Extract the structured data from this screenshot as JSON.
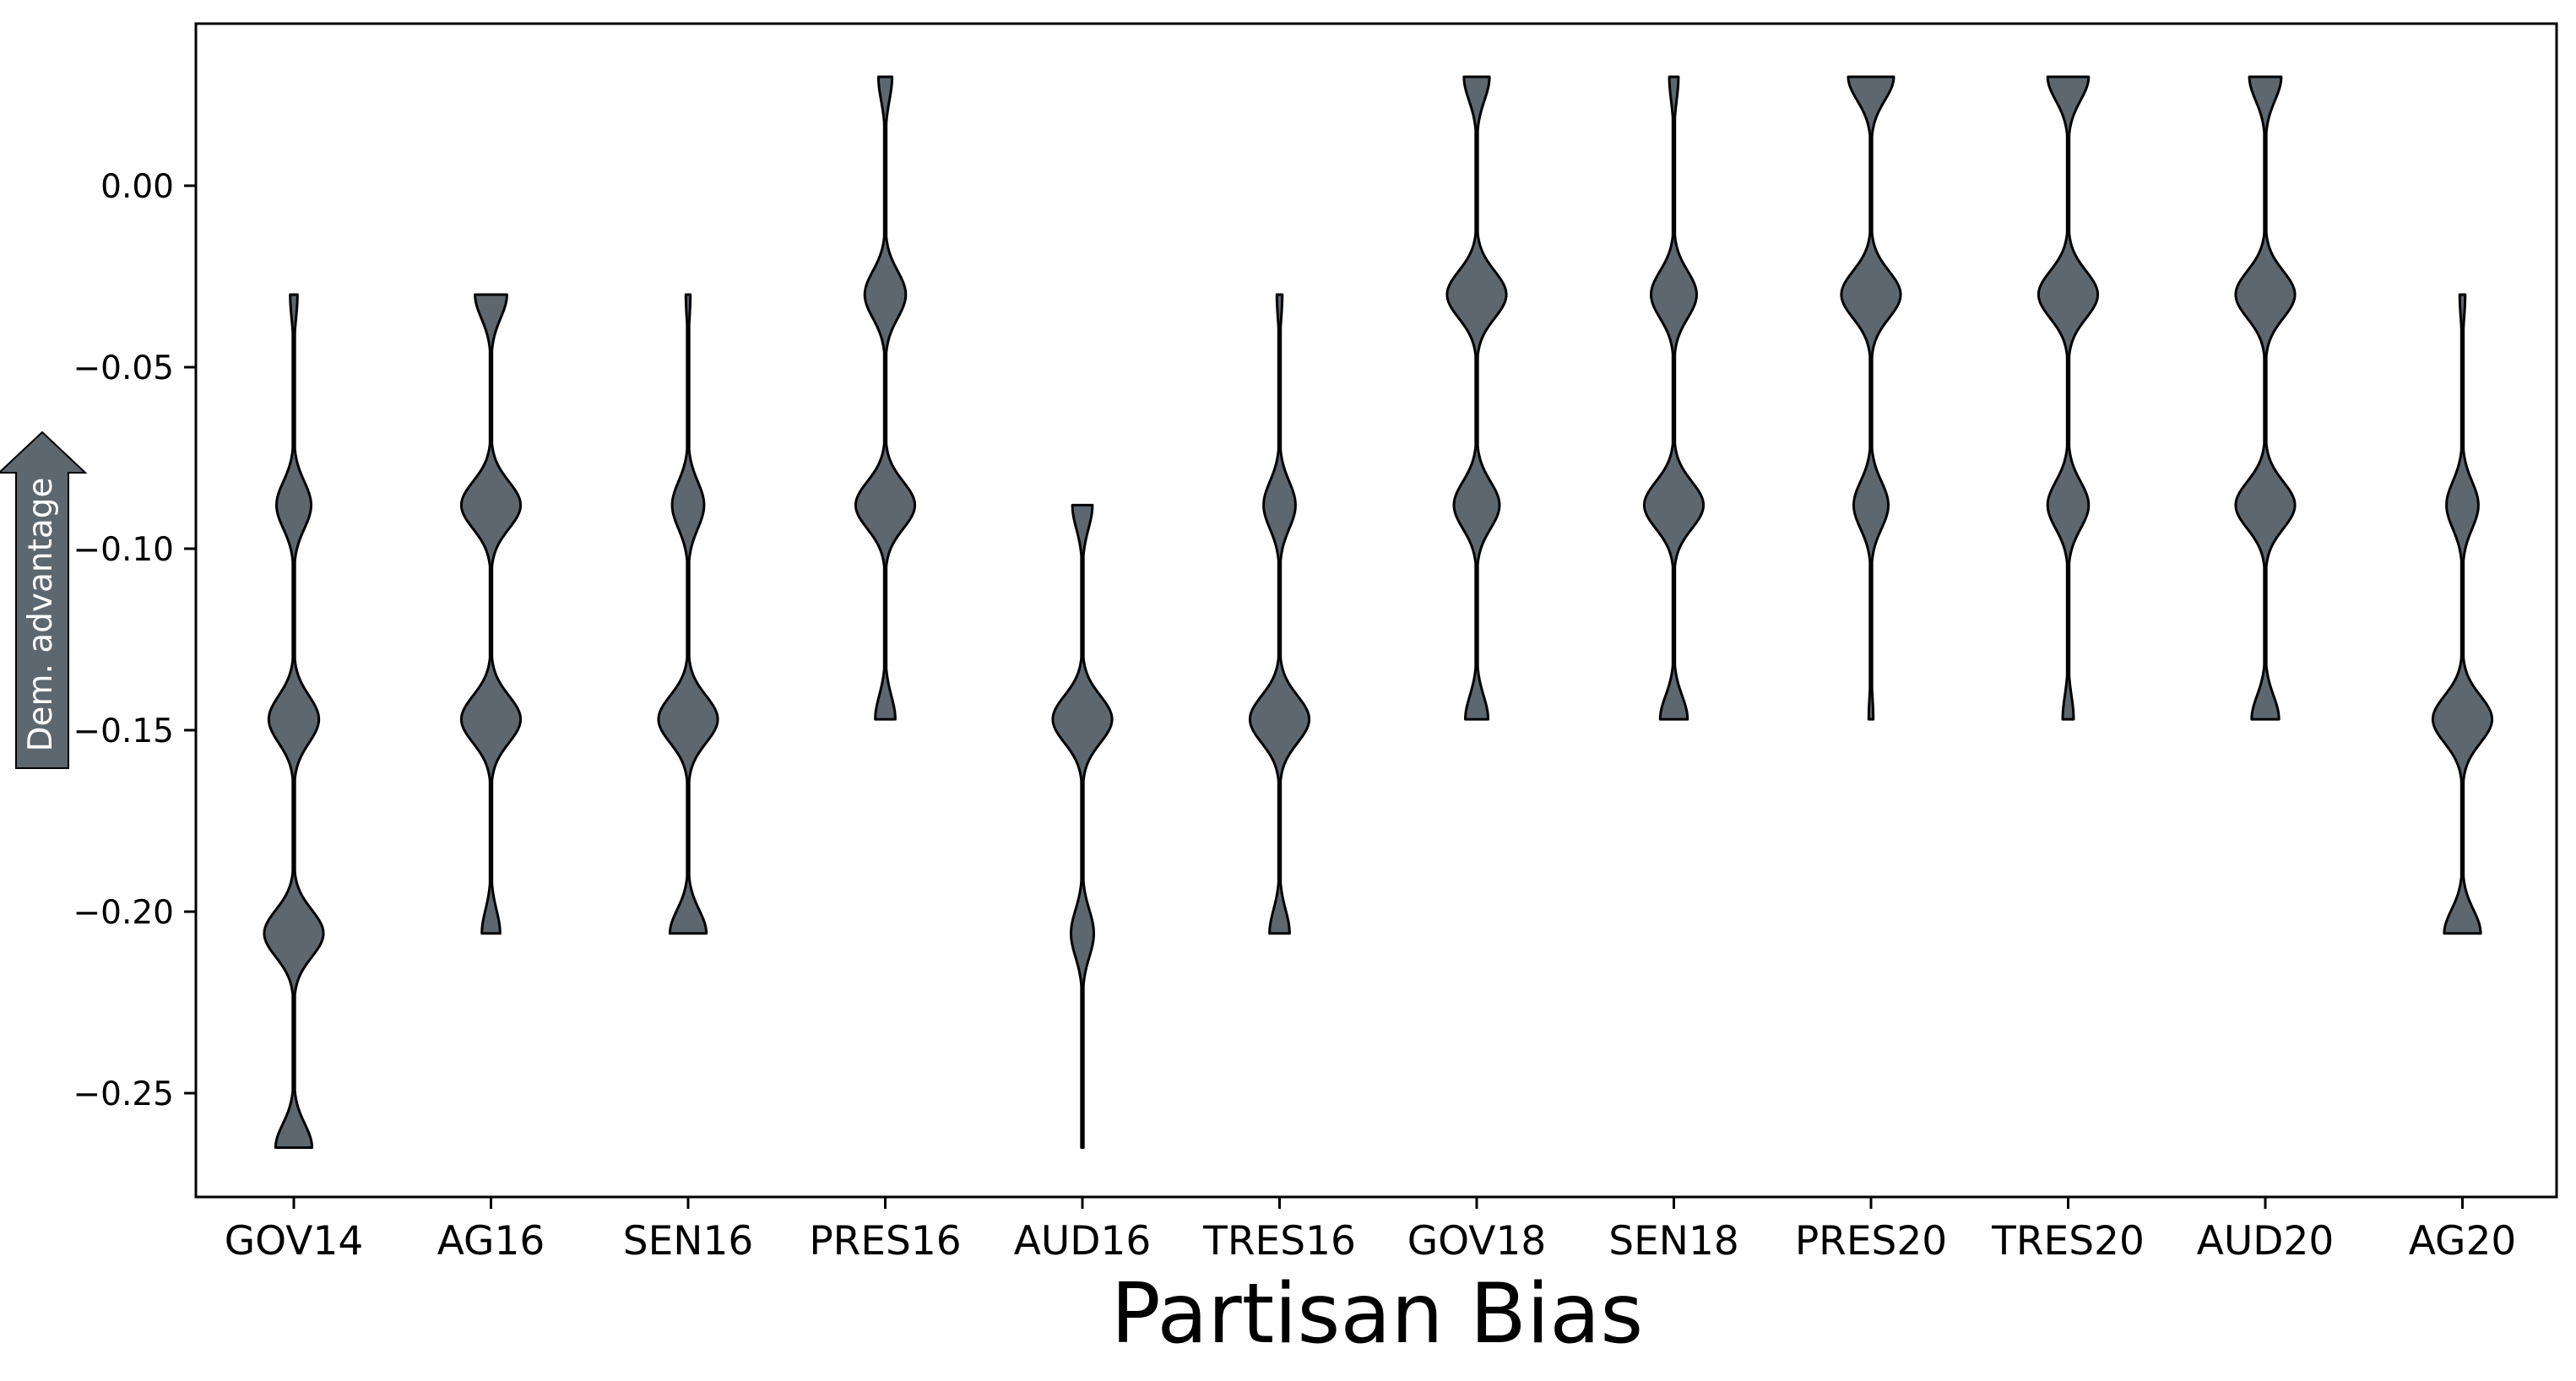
{
  "chart_data": {
    "type": "violin",
    "title": "",
    "xlabel": "Partisan Bias",
    "ylabel": "",
    "ylim": [
      -0.29,
      0.035
    ],
    "yticks": [
      0.0,
      -0.05,
      -0.1,
      -0.15,
      -0.2,
      -0.25
    ],
    "ytick_labels": [
      "0.00",
      "−0.05",
      "−0.10",
      "−0.15",
      "−0.20",
      "−0.25"
    ],
    "categories": [
      "GOV14",
      "AG16",
      "SEN16",
      "PRES16",
      "AUD16",
      "TRES16",
      "GOV18",
      "SEN18",
      "PRES20",
      "TRES20",
      "AUD20",
      "AG20"
    ],
    "fill_color": "#5d6770",
    "edge_color": "#000000",
    "grid": false,
    "legend": "none",
    "annotation": {
      "text": "Dem. advantage",
      "shape": "arrow-up",
      "color": "#5d6770"
    },
    "violins": [
      {
        "ymin": -0.265,
        "ymax": -0.03,
        "peaks": [
          {
            "y": -0.03,
            "w": 0.08
          },
          {
            "y": -0.088,
            "w": 0.38
          },
          {
            "y": -0.147,
            "w": 0.55
          },
          {
            "y": -0.206,
            "w": 0.65
          },
          {
            "y": -0.265,
            "w": 0.4
          }
        ]
      },
      {
        "ymin": -0.206,
        "ymax": -0.03,
        "peaks": [
          {
            "y": -0.03,
            "w": 0.35
          },
          {
            "y": -0.088,
            "w": 0.65
          },
          {
            "y": -0.147,
            "w": 0.65
          },
          {
            "y": -0.206,
            "w": 0.2
          }
        ]
      },
      {
        "ymin": -0.206,
        "ymax": -0.03,
        "peaks": [
          {
            "y": -0.03,
            "w": 0.05
          },
          {
            "y": -0.088,
            "w": 0.35
          },
          {
            "y": -0.147,
            "w": 0.65
          },
          {
            "y": -0.206,
            "w": 0.4
          }
        ]
      },
      {
        "ymin": -0.147,
        "ymax": 0.03,
        "peaks": [
          {
            "y": 0.03,
            "w": 0.15
          },
          {
            "y": -0.03,
            "w": 0.45
          },
          {
            "y": -0.088,
            "w": 0.65
          },
          {
            "y": -0.147,
            "w": 0.22
          }
        ]
      },
      {
        "ymin": -0.265,
        "ymax": -0.088,
        "peaks": [
          {
            "y": -0.088,
            "w": 0.22
          },
          {
            "y": -0.147,
            "w": 0.65
          },
          {
            "y": -0.206,
            "w": 0.25
          },
          {
            "y": -0.265,
            "w": 0.02
          }
        ]
      },
      {
        "ymin": -0.206,
        "ymax": -0.03,
        "peaks": [
          {
            "y": -0.03,
            "w": 0.06
          },
          {
            "y": -0.088,
            "w": 0.35
          },
          {
            "y": -0.147,
            "w": 0.65
          },
          {
            "y": -0.206,
            "w": 0.22
          }
        ]
      },
      {
        "ymin": -0.147,
        "ymax": 0.03,
        "peaks": [
          {
            "y": 0.03,
            "w": 0.28
          },
          {
            "y": -0.03,
            "w": 0.65
          },
          {
            "y": -0.088,
            "w": 0.5
          },
          {
            "y": -0.147,
            "w": 0.25
          }
        ]
      },
      {
        "ymin": -0.147,
        "ymax": 0.03,
        "peaks": [
          {
            "y": 0.03,
            "w": 0.1
          },
          {
            "y": -0.03,
            "w": 0.5
          },
          {
            "y": -0.088,
            "w": 0.65
          },
          {
            "y": -0.147,
            "w": 0.3
          }
        ]
      },
      {
        "ymin": -0.147,
        "ymax": 0.03,
        "peaks": [
          {
            "y": 0.03,
            "w": 0.5
          },
          {
            "y": -0.03,
            "w": 0.65
          },
          {
            "y": -0.088,
            "w": 0.38
          },
          {
            "y": -0.147,
            "w": 0.05
          }
        ]
      },
      {
        "ymin": -0.147,
        "ymax": 0.03,
        "peaks": [
          {
            "y": 0.03,
            "w": 0.45
          },
          {
            "y": -0.03,
            "w": 0.65
          },
          {
            "y": -0.088,
            "w": 0.45
          },
          {
            "y": -0.147,
            "w": 0.12
          }
        ]
      },
      {
        "ymin": -0.147,
        "ymax": 0.03,
        "peaks": [
          {
            "y": 0.03,
            "w": 0.35
          },
          {
            "y": -0.03,
            "w": 0.65
          },
          {
            "y": -0.088,
            "w": 0.65
          },
          {
            "y": -0.147,
            "w": 0.3
          }
        ]
      },
      {
        "ymin": -0.206,
        "ymax": -0.03,
        "peaks": [
          {
            "y": -0.03,
            "w": 0.06
          },
          {
            "y": -0.088,
            "w": 0.35
          },
          {
            "y": -0.147,
            "w": 0.65
          },
          {
            "y": -0.206,
            "w": 0.4
          }
        ]
      }
    ]
  }
}
